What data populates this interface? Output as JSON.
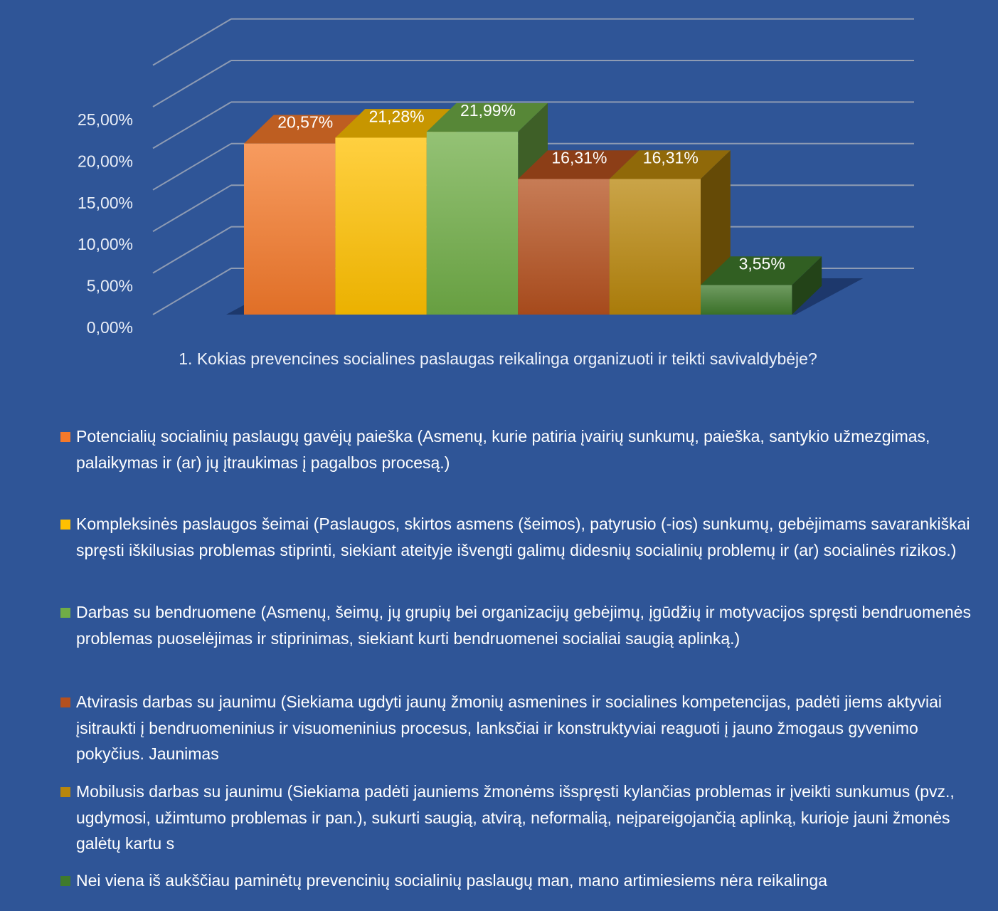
{
  "chart_data": {
    "type": "bar",
    "title": "",
    "xlabel": "",
    "ylabel": "",
    "categories": [
      "1. Kokias prevencines socialines paslaugas reikalinga organizuoti ir teikti savivaldybėje?"
    ],
    "ylim": [
      0,
      25
    ],
    "yticks": [
      "0,00%",
      "5,00%",
      "10,00%",
      "15,00%",
      "20,00%",
      "25,00%"
    ],
    "grid": true,
    "legend_position": "bottom",
    "series": [
      {
        "name": "Potencialių socialinių paslaugų gavėjų paieška (Asmenų, kurie patiria įvairių sunkumų, paieška, santykio užmezgimas, palaikymas ir (ar) jų įtraukimas į pagalbos procesą.)",
        "values": [
          20.57
        ],
        "label": "20,57%",
        "color": "#f4792a"
      },
      {
        "name": "Kompleksinės paslaugos šeimai (Paslaugos, skirtos asmens (šeimos), patyrusio (-ios) sunkumų, gebėjimams savarankiškai spręsti iškilusias problemas stiprinti, siekiant ateityje išvengti galimų didesnių socialinių problemų ir (ar) socialinės rizikos.)",
        "values": [
          21.28
        ],
        "label": "21,28%",
        "color": "#ffc000"
      },
      {
        "name": "Darbas su bendruomene (Asmenų, šeimų, jų grupių bei organizacijų gebėjimų, įgūdžių ir motyvacijos spręsti bendruomenės problemas puoselėjimas ir stiprinimas, siekiant kurti bendruomenei socialiai saugią aplinką.)",
        "values": [
          21.99
        ],
        "label": "21,99%",
        "color": "#70ad47"
      },
      {
        "name": "Atvirasis darbas su jaunimu (Siekiama ugdyti jaunų žmonių asmenines ir socialines kompetencijas, padėti jiems aktyviai įsitraukti į bendruomeninius ir visuomeninius procesus, lanksčiai ir konstruktyviai reaguoti į jauno žmogaus gyvenimo pokyčius. Jaunimas",
        "values": [
          16.31
        ],
        "label": "16,31%",
        "color": "#b4501e"
      },
      {
        "name": "Mobilusis darbas su jaunimu (Siekiama padėti jauniems žmonėms išspręsti kylančias problemas ir įveikti sunkumus (pvz., ugdymosi, užimtumo problemas ir pan.), sukurti saugią, atvirą, neformalią, neįpareigojančią aplinką, kurioje jauni žmonės galėtų kartu s",
        "values": [
          16.31
        ],
        "label": "16,31%",
        "color": "#b8860b"
      },
      {
        "name": "Nei viena iš aukščiau paminėtų prevencinių socialinių paslaugų man, mano artimiesiems nėra reikalinga",
        "values": [
          3.55
        ],
        "label": "3,55%",
        "color": "#3f7a2c"
      }
    ]
  }
}
